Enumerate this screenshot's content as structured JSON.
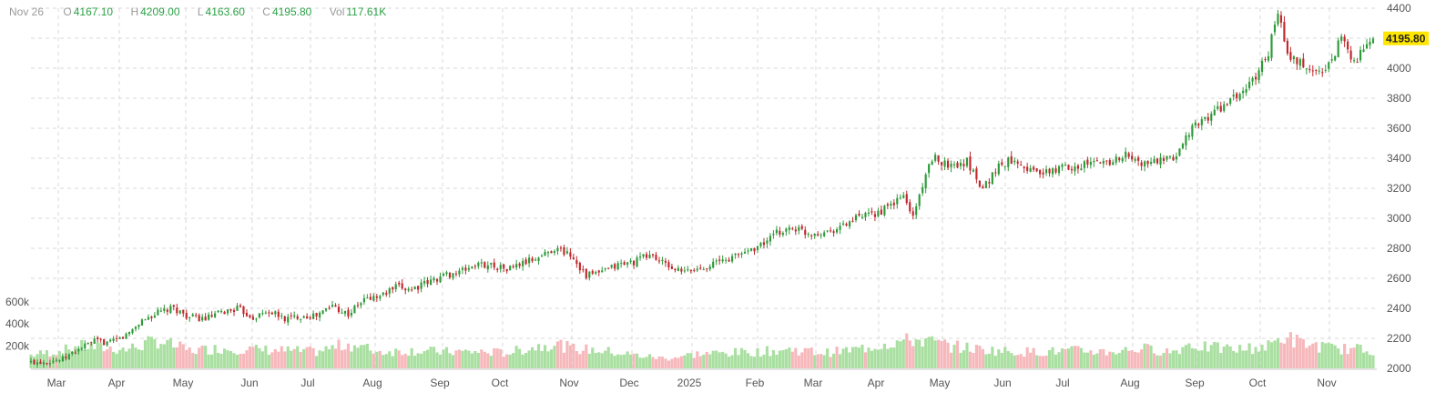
{
  "legend": {
    "date": "Nov 26",
    "open_key": "O",
    "open": "4167.10",
    "high_key": "H",
    "high": "4209.00",
    "low_key": "L",
    "low": "4163.60",
    "close_key": "C",
    "close": "4195.80",
    "vol_key": "Vol",
    "vol": "117.61K"
  },
  "colors": {
    "up_candle": "#2e9a3a",
    "down_candle": "#c0282d",
    "up_volume": "#a9dfa0",
    "down_volume": "#f6b8bb",
    "grid": "#d8d8d8",
    "price_tag": "#ffe600"
  },
  "chart_data": {
    "type": "candlestick",
    "price_axis": {
      "ticks": [
        2000,
        2200,
        2400,
        2600,
        2800,
        3000,
        3200,
        3400,
        3600,
        3800,
        4000,
        4200,
        4400
      ],
      "range": [
        2000,
        4400
      ],
      "position": "right"
    },
    "volume_axis": {
      "ticks": [
        200000,
        400000,
        600000
      ],
      "tick_labels": [
        "200k",
        "400k",
        "600k"
      ],
      "position": "left"
    },
    "x_axis_labels": [
      "Mar",
      "Apr",
      "May",
      "Jun",
      "Jul",
      "Aug",
      "Sep",
      "Oct",
      "Nov",
      "Dec",
      "2025",
      "Feb",
      "Mar",
      "Apr",
      "May",
      "Jun",
      "Jul",
      "Aug",
      "Sep",
      "Oct",
      "Nov"
    ],
    "last_price_label": "4195.80",
    "grid": true,
    "price_path": [
      [
        0,
        2040
      ],
      [
        10,
        2060
      ],
      [
        15,
        2130
      ],
      [
        20,
        2180
      ],
      [
        25,
        2170
      ],
      [
        30,
        2220
      ],
      [
        35,
        2320
      ],
      [
        40,
        2370
      ],
      [
        45,
        2400
      ],
      [
        50,
        2340
      ],
      [
        55,
        2330
      ],
      [
        60,
        2370
      ],
      [
        65,
        2400
      ],
      [
        70,
        2340
      ],
      [
        75,
        2380
      ],
      [
        80,
        2330
      ],
      [
        85,
        2350
      ],
      [
        90,
        2350
      ],
      [
        95,
        2420
      ],
      [
        100,
        2360
      ],
      [
        105,
        2460
      ],
      [
        110,
        2480
      ],
      [
        115,
        2540
      ],
      [
        120,
        2530
      ],
      [
        125,
        2570
      ],
      [
        130,
        2620
      ],
      [
        135,
        2640
      ],
      [
        140,
        2690
      ],
      [
        145,
        2690
      ],
      [
        150,
        2660
      ],
      [
        155,
        2700
      ],
      [
        160,
        2740
      ],
      [
        165,
        2800
      ],
      [
        170,
        2760
      ],
      [
        175,
        2620
      ],
      [
        180,
        2640
      ],
      [
        185,
        2690
      ],
      [
        190,
        2710
      ],
      [
        195,
        2760
      ],
      [
        200,
        2690
      ],
      [
        205,
        2640
      ],
      [
        210,
        2660
      ],
      [
        215,
        2700
      ],
      [
        220,
        2730
      ],
      [
        225,
        2780
      ],
      [
        230,
        2820
      ],
      [
        235,
        2900
      ],
      [
        240,
        2940
      ],
      [
        245,
        2900
      ],
      [
        250,
        2910
      ],
      [
        255,
        2940
      ],
      [
        260,
        3000
      ],
      [
        265,
        3020
      ],
      [
        270,
        3070
      ],
      [
        275,
        3150
      ],
      [
        278,
        3010
      ],
      [
        282,
        3300
      ],
      [
        285,
        3400
      ],
      [
        290,
        3350
      ],
      [
        295,
        3380
      ],
      [
        300,
        3200
      ],
      [
        305,
        3350
      ],
      [
        310,
        3400
      ],
      [
        315,
        3320
      ],
      [
        320,
        3300
      ],
      [
        325,
        3340
      ],
      [
        330,
        3350
      ],
      [
        335,
        3370
      ],
      [
        340,
        3380
      ],
      [
        345,
        3420
      ],
      [
        350,
        3360
      ],
      [
        355,
        3380
      ],
      [
        360,
        3390
      ],
      [
        365,
        3580
      ],
      [
        370,
        3660
      ],
      [
        375,
        3740
      ],
      [
        380,
        3810
      ],
      [
        385,
        3910
      ],
      [
        390,
        4110
      ],
      [
        393,
        4380
      ],
      [
        396,
        4080
      ],
      [
        400,
        4030
      ],
      [
        405,
        3970
      ],
      [
        410,
        4040
      ],
      [
        413,
        4230
      ],
      [
        417,
        4040
      ],
      [
        423,
        4195.8
      ]
    ],
    "volume_path": [
      [
        0,
        120000
      ],
      [
        10,
        160000
      ],
      [
        15,
        200000
      ],
      [
        30,
        170000
      ],
      [
        40,
        250000
      ],
      [
        50,
        160000
      ],
      [
        60,
        180000
      ],
      [
        70,
        170000
      ],
      [
        80,
        160000
      ],
      [
        90,
        150000
      ],
      [
        100,
        220000
      ],
      [
        110,
        150000
      ],
      [
        120,
        160000
      ],
      [
        130,
        150000
      ],
      [
        140,
        150000
      ],
      [
        150,
        140000
      ],
      [
        160,
        200000
      ],
      [
        165,
        230000
      ],
      [
        170,
        180000
      ],
      [
        180,
        160000
      ],
      [
        190,
        120000
      ],
      [
        200,
        90000
      ],
      [
        210,
        130000
      ],
      [
        220,
        140000
      ],
      [
        230,
        150000
      ],
      [
        240,
        170000
      ],
      [
        250,
        140000
      ],
      [
        260,
        170000
      ],
      [
        270,
        230000
      ],
      [
        280,
        260000
      ],
      [
        290,
        200000
      ],
      [
        300,
        170000
      ],
      [
        310,
        150000
      ],
      [
        320,
        150000
      ],
      [
        330,
        160000
      ],
      [
        340,
        150000
      ],
      [
        350,
        180000
      ],
      [
        360,
        150000
      ],
      [
        365,
        220000
      ],
      [
        370,
        190000
      ],
      [
        380,
        170000
      ],
      [
        390,
        200000
      ],
      [
        395,
        290000
      ],
      [
        400,
        230000
      ],
      [
        410,
        180000
      ],
      [
        420,
        170000
      ],
      [
        423,
        117610
      ]
    ]
  }
}
